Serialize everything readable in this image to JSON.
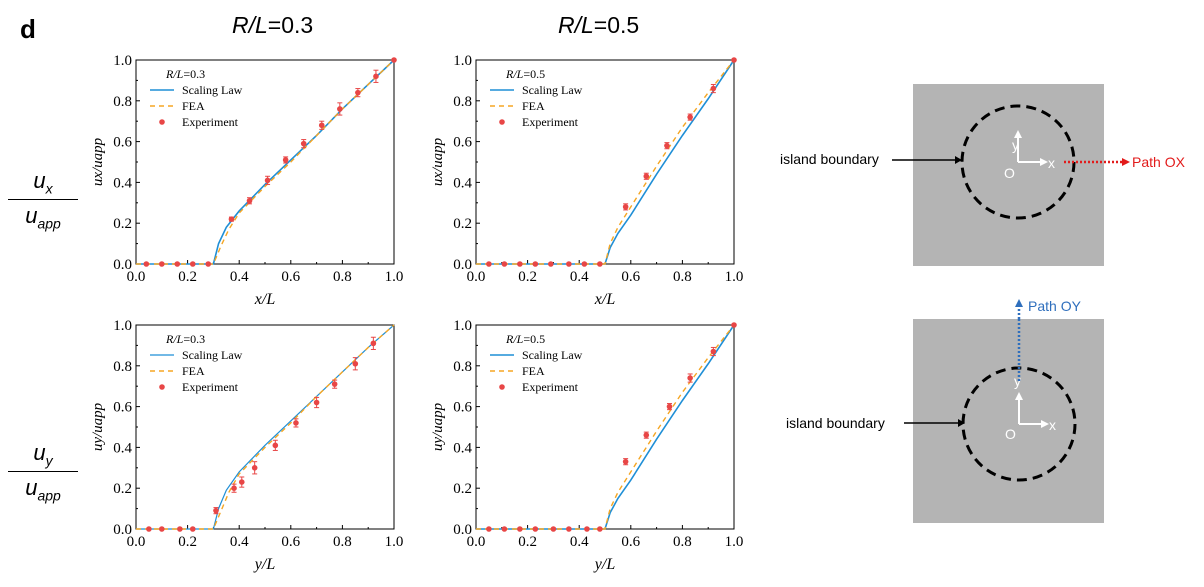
{
  "figure": {
    "panel_letter": "d",
    "column_titles": [
      {
        "italic": "R/L",
        "text": "=0.3"
      },
      {
        "italic": "R/L",
        "text": "=0.5"
      }
    ],
    "row_labels": [
      {
        "num": "u",
        "num_sub": "x",
        "den": "u",
        "den_sub": "app"
      },
      {
        "num": "u",
        "num_sub": "y",
        "den": "u",
        "den_sub": "app"
      }
    ]
  },
  "chart_data": [
    {
      "type": "line",
      "legend_title": "R/L=0.3",
      "legend": [
        "Scaling Law",
        "FEA",
        "Experiment"
      ],
      "xlabel": "x/L",
      "ylabel": "ux/uapp",
      "xlim": [
        0,
        1
      ],
      "ylim": [
        0,
        1
      ],
      "ticks": [
        "0.0",
        "0.2",
        "0.4",
        "0.6",
        "0.8",
        "1.0"
      ],
      "series": [
        {
          "name": "Scaling Law",
          "color": "#1f8fd6",
          "width": 1.6,
          "x": [
            0,
            0.3,
            0.32,
            0.35,
            0.4,
            0.5,
            0.6,
            0.7,
            0.8,
            0.9,
            1.0
          ],
          "y": [
            0,
            0,
            0.1,
            0.18,
            0.26,
            0.39,
            0.51,
            0.63,
            0.76,
            0.88,
            1.0
          ]
        },
        {
          "name": "FEA",
          "color": "#f5a623",
          "dash": "5,4",
          "x": [
            0,
            0.3,
            0.33,
            0.36,
            0.4,
            0.5,
            0.6,
            0.7,
            0.8,
            0.9,
            1.0
          ],
          "y": [
            0,
            0,
            0.09,
            0.17,
            0.25,
            0.38,
            0.5,
            0.63,
            0.76,
            0.88,
            1.0
          ]
        },
        {
          "name": "Experiment",
          "color": "#e84646",
          "markers": true,
          "x": [
            0.04,
            0.1,
            0.16,
            0.22,
            0.28,
            0.37,
            0.44,
            0.51,
            0.58,
            0.65,
            0.72,
            0.79,
            0.86,
            0.93,
            1.0
          ],
          "y": [
            0,
            0,
            0,
            0,
            0,
            0.22,
            0.31,
            0.41,
            0.51,
            0.59,
            0.68,
            0.76,
            0.84,
            0.92,
            1.0
          ],
          "err": [
            0,
            0,
            0,
            0,
            0,
            0.01,
            0.015,
            0.02,
            0.015,
            0.02,
            0.02,
            0.03,
            0.02,
            0.03,
            0
          ]
        }
      ]
    },
    {
      "type": "line",
      "legend_title": "R/L=0.5",
      "legend": [
        "Scaling Law",
        "FEA",
        "Experiment"
      ],
      "xlabel": "x/L",
      "ylabel": "ux/uapp",
      "xlim": [
        0,
        1
      ],
      "ylim": [
        0,
        1
      ],
      "ticks": [
        "0.0",
        "0.2",
        "0.4",
        "0.6",
        "0.8",
        "1.0"
      ],
      "series": [
        {
          "name": "Scaling Law",
          "color": "#1f8fd6",
          "width": 1.6,
          "x": [
            0,
            0.5,
            0.52,
            0.55,
            0.6,
            0.7,
            0.8,
            0.9,
            1.0
          ],
          "y": [
            0,
            0,
            0.08,
            0.15,
            0.24,
            0.44,
            0.63,
            0.81,
            1.0
          ]
        },
        {
          "name": "FEA",
          "color": "#f5a623",
          "dash": "5,4",
          "x": [
            0,
            0.5,
            0.52,
            0.55,
            0.6,
            0.7,
            0.8,
            0.9,
            1.0
          ],
          "y": [
            0,
            0,
            0.1,
            0.18,
            0.28,
            0.48,
            0.67,
            0.84,
            1.0
          ]
        },
        {
          "name": "Experiment",
          "color": "#e84646",
          "markers": true,
          "x": [
            0.05,
            0.11,
            0.17,
            0.23,
            0.29,
            0.36,
            0.42,
            0.48,
            0.58,
            0.66,
            0.74,
            0.83,
            0.92,
            1.0
          ],
          "y": [
            0,
            0,
            0,
            0,
            0,
            0,
            0,
            0,
            0.28,
            0.43,
            0.58,
            0.72,
            0.86,
            1.0
          ],
          "err": [
            0,
            0,
            0,
            0,
            0,
            0,
            0,
            0,
            0.015,
            0.015,
            0.015,
            0.015,
            0.02,
            0
          ]
        }
      ]
    },
    {
      "type": "line",
      "legend_title": "R/L=0.3",
      "legend": [
        "Scaling Law",
        "FEA",
        "Experiment"
      ],
      "xlabel": "y/L",
      "ylabel": "uy/uapp",
      "xlim": [
        0,
        1
      ],
      "ylim": [
        0,
        1
      ],
      "ticks": [
        "0.0",
        "0.2",
        "0.4",
        "0.6",
        "0.8",
        "1.0"
      ],
      "series": [
        {
          "name": "Scaling Law",
          "color": "#1f8fd6",
          "width": 1.2,
          "x": [
            0,
            0.3,
            0.32,
            0.35,
            0.4,
            0.5,
            0.6,
            0.7,
            0.8,
            0.9,
            1.0
          ],
          "y": [
            0,
            0,
            0.1,
            0.19,
            0.28,
            0.41,
            0.53,
            0.65,
            0.77,
            0.89,
            1.0
          ]
        },
        {
          "name": "FEA",
          "color": "#f5a623",
          "dash": "5,4",
          "x": [
            0,
            0.3,
            0.33,
            0.36,
            0.4,
            0.5,
            0.6,
            0.7,
            0.8,
            0.9,
            1.0
          ],
          "y": [
            0,
            0,
            0.09,
            0.18,
            0.27,
            0.4,
            0.52,
            0.65,
            0.77,
            0.89,
            1.0
          ]
        },
        {
          "name": "Experiment",
          "color": "#e84646",
          "markers": true,
          "x": [
            0.05,
            0.1,
            0.17,
            0.22,
            0.31,
            0.38,
            0.41,
            0.46,
            0.54,
            0.62,
            0.7,
            0.77,
            0.85,
            0.92
          ],
          "y": [
            0,
            0,
            0,
            0,
            0.09,
            0.2,
            0.23,
            0.3,
            0.41,
            0.52,
            0.62,
            0.71,
            0.81,
            0.91
          ],
          "err": [
            0,
            0,
            0,
            0,
            0.015,
            0.02,
            0.025,
            0.03,
            0.025,
            0.02,
            0.025,
            0.02,
            0.03,
            0.03
          ]
        }
      ]
    },
    {
      "type": "line",
      "legend_title": "R/L=0.5",
      "legend": [
        "Scaling Law",
        "FEA",
        "Experiment"
      ],
      "xlabel": "y/L",
      "ylabel": "uy/uapp",
      "xlim": [
        0,
        1
      ],
      "ylim": [
        0,
        1
      ],
      "ticks": [
        "0.0",
        "0.2",
        "0.4",
        "0.6",
        "0.8",
        "1.0"
      ],
      "series": [
        {
          "name": "Scaling Law",
          "color": "#1f8fd6",
          "width": 1.6,
          "x": [
            0,
            0.5,
            0.52,
            0.55,
            0.6,
            0.7,
            0.8,
            0.9,
            1.0
          ],
          "y": [
            0,
            0,
            0.08,
            0.15,
            0.24,
            0.44,
            0.63,
            0.81,
            1.0
          ]
        },
        {
          "name": "FEA",
          "color": "#f5a623",
          "dash": "5,4",
          "x": [
            0,
            0.5,
            0.52,
            0.55,
            0.6,
            0.7,
            0.8,
            0.9,
            1.0
          ],
          "y": [
            0,
            0,
            0.1,
            0.18,
            0.28,
            0.48,
            0.67,
            0.84,
            1.0
          ]
        },
        {
          "name": "Experiment",
          "color": "#e84646",
          "markers": true,
          "x": [
            0.05,
            0.11,
            0.17,
            0.23,
            0.3,
            0.36,
            0.43,
            0.48,
            0.58,
            0.66,
            0.75,
            0.83,
            0.92,
            1.0
          ],
          "y": [
            0,
            0,
            0,
            0,
            0,
            0,
            0,
            0,
            0.33,
            0.46,
            0.6,
            0.74,
            0.87,
            1.0
          ],
          "err": [
            0,
            0,
            0,
            0,
            0,
            0,
            0,
            0,
            0.015,
            0.015,
            0.015,
            0.02,
            0.02,
            0
          ]
        }
      ]
    }
  ],
  "diagrams": [
    {
      "boundary_label": "island boundary",
      "origin": "O",
      "axis_x": "x",
      "axis_y": "y",
      "path_label": "Path OX",
      "path_color": "#e21b1b"
    },
    {
      "boundary_label": "island boundary",
      "origin": "O",
      "axis_x": "x",
      "axis_y": "y",
      "path_label": "Path OY",
      "path_color": "#2f6fbd"
    }
  ]
}
